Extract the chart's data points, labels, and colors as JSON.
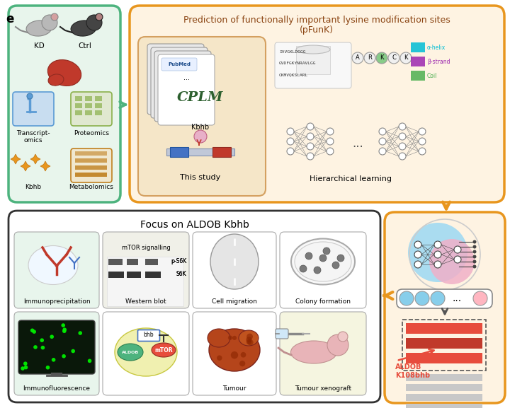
{
  "title_top": "Prediction of functionally important lysine modification sites",
  "title_top_sub": "(pFunK)",
  "title_bottom": "Focus on ALDOB Kbhb",
  "panel_label": "e",
  "left_box_color": "#4db37e",
  "outer_box_color": "#e8961e",
  "bottom_box_color": "#333333",
  "inner_bg_color": "#f5e6c8",
  "left_bg_color": "#e8f5e9",
  "bottom_inner_bg": "#e8f5e9",
  "arrow_color": "#4db37e",
  "orange_arrow_color": "#e8961e",
  "KD_label": "KD",
  "Ctrl_label": "Ctrl",
  "this_study_label": "This study",
  "hier_label": "Hierarchical learning",
  "cplm_label": "CPLM",
  "kbhb_label": "Kbhb",
  "aldob_label": "ALDOB\nK108bhb",
  "bottom_labels": [
    "Immunoprecipitation",
    "Western blot",
    "Cell migration",
    "Colony formation",
    "Immunofluorescence",
    "Tumour",
    "Tumour xenograft"
  ],
  "mtor_label": "mTOR signalling",
  "pS6K_label": "p-S6K",
  "S6K_label": "S6K",
  "seq_lines": [
    "IVVGKLDGGG",
    "GVDFGKYNRAVLGG",
    "CKMVQKSLARL"
  ],
  "struct_labels": [
    "α-helix",
    "β-strand",
    "Coil"
  ],
  "struct_colors": [
    "#00bcd4",
    "#9c27b0",
    "#4caf50"
  ],
  "background_color": "#ffffff"
}
